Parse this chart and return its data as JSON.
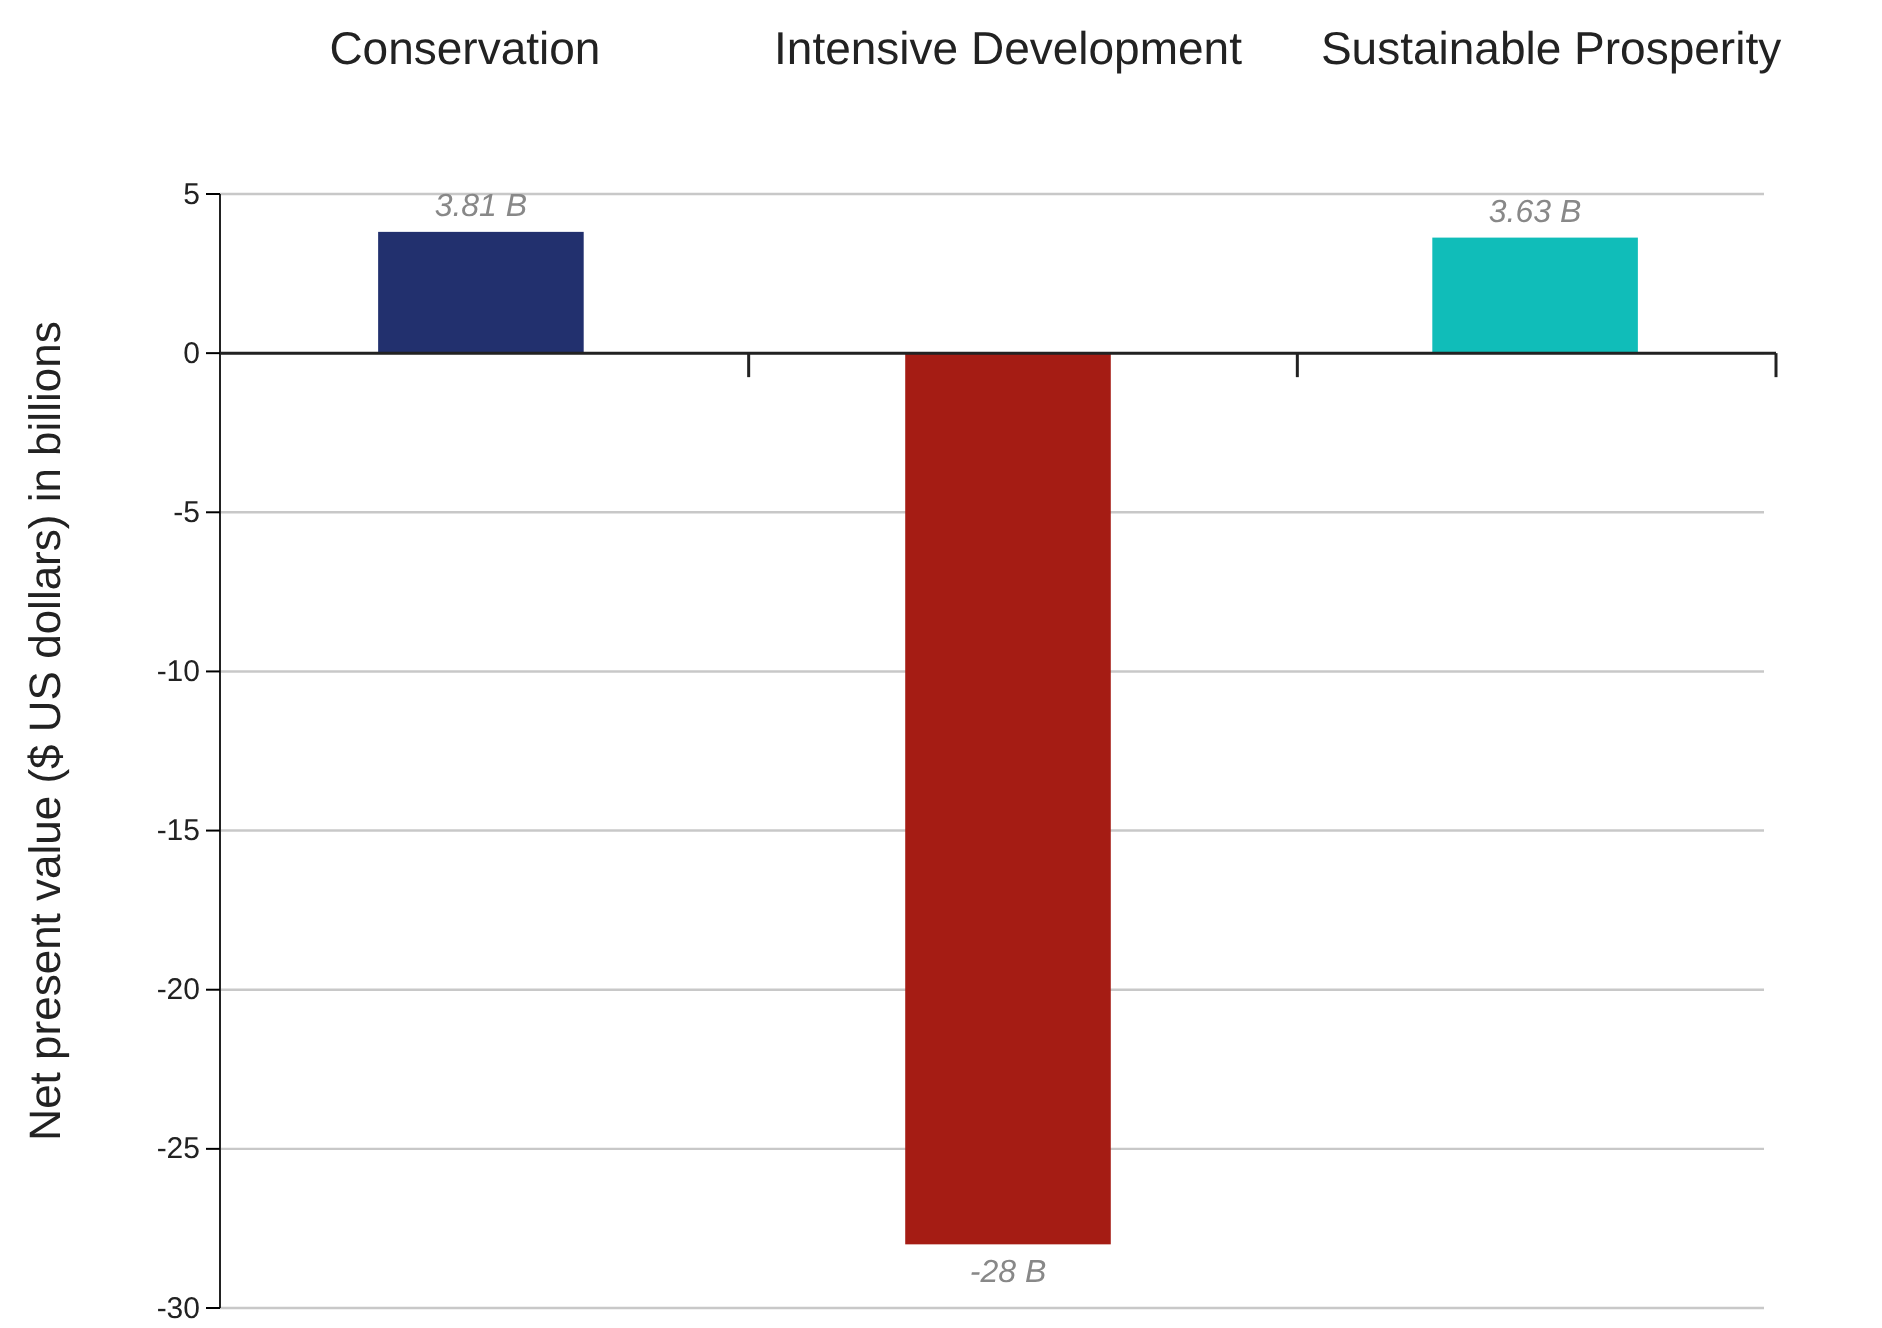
{
  "chart_data": {
    "type": "bar",
    "ylabel": "Net present value ($ US dollars) in billions",
    "categories": [
      "Conservation",
      "Intensive Development",
      "Sustainable Prosperity"
    ],
    "values": [
      3.81,
      -28,
      3.63
    ],
    "colors": [
      "#22306e",
      "#a51c14",
      "#10bdb9"
    ],
    "value_labels": [
      "3.81 B",
      "-28 B",
      "3.63 B"
    ],
    "ylim": [
      -30,
      5
    ],
    "yticks": [
      5,
      0,
      -5,
      -10,
      -15,
      -20,
      -25,
      -30
    ],
    "grid": "y"
  }
}
